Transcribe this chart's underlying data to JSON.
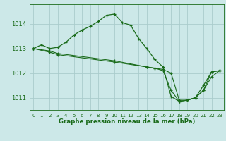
{
  "title": "Graphe pression niveau de la mer (hPa)",
  "bg_color": "#cce8e8",
  "grid_color": "#aacccc",
  "line_color": "#1a6b1a",
  "xlim": [
    -0.5,
    23.5
  ],
  "ylim": [
    1010.5,
    1014.8
  ],
  "yticks": [
    1011,
    1012,
    1013,
    1014
  ],
  "xticks": [
    0,
    1,
    2,
    3,
    4,
    5,
    6,
    7,
    8,
    9,
    10,
    11,
    12,
    13,
    14,
    15,
    16,
    17,
    18,
    19,
    20,
    21,
    22,
    23
  ],
  "series1_x": [
    0,
    1,
    2,
    3,
    4,
    5,
    6,
    7,
    8,
    9,
    10,
    11,
    12,
    13,
    14,
    15,
    16,
    17,
    18,
    19,
    20,
    21,
    22,
    23
  ],
  "series1_y": [
    1013.0,
    1013.15,
    1013.0,
    1013.05,
    1013.25,
    1013.55,
    1013.75,
    1013.9,
    1014.1,
    1014.35,
    1014.4,
    1014.05,
    1013.95,
    1013.4,
    1013.0,
    1012.55,
    1012.25,
    1011.05,
    1010.85,
    1010.9,
    1011.0,
    1011.5,
    1012.05,
    1012.1
  ],
  "series2_x": [
    0,
    2,
    3,
    10,
    14,
    15,
    16,
    17,
    18,
    19,
    20,
    21,
    22,
    23
  ],
  "series2_y": [
    1013.0,
    1012.85,
    1012.75,
    1012.45,
    1012.25,
    1012.2,
    1012.1,
    1011.3,
    1010.85,
    1010.9,
    1011.0,
    1011.3,
    1011.85,
    1012.1
  ],
  "series3_x": [
    0,
    2,
    3,
    10,
    14,
    15,
    16,
    17,
    18,
    19,
    20,
    21,
    22,
    23
  ],
  "series3_y": [
    1013.0,
    1012.9,
    1012.8,
    1012.5,
    1012.25,
    1012.2,
    1012.15,
    1012.0,
    1010.9,
    1010.9,
    1011.0,
    1011.3,
    1012.05,
    1012.1
  ]
}
